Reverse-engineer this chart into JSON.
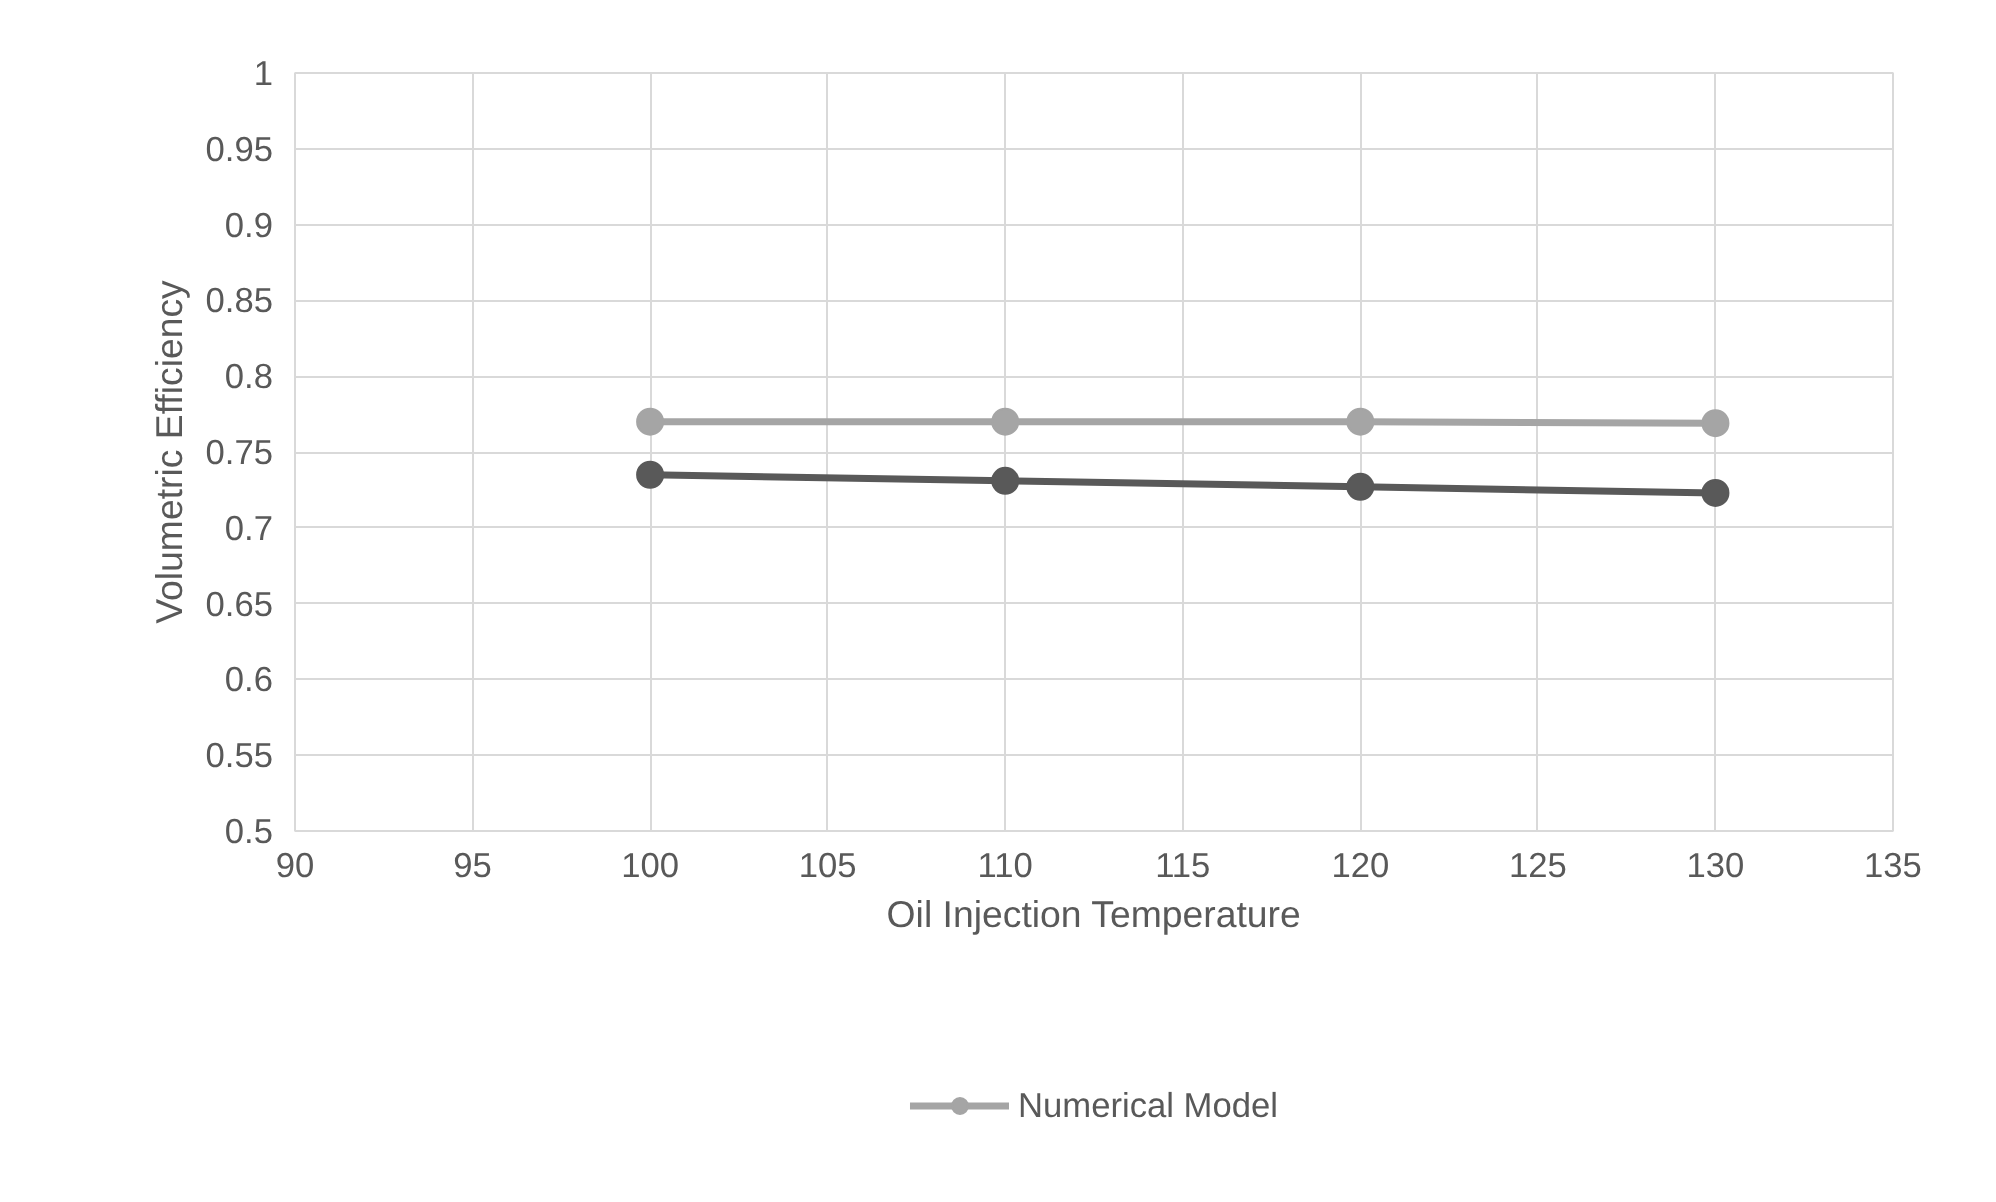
{
  "chart_data": {
    "type": "line",
    "xlabel": "Oil Injection Temperature",
    "ylabel": "Volumetric Efficiency",
    "x": [
      100,
      110,
      120,
      130
    ],
    "series": [
      {
        "color": "#595959",
        "values": [
          0.735,
          0.731,
          0.727,
          0.723
        ]
      },
      {
        "name": "Numerical Model",
        "color": "#a5a5a5",
        "values": [
          0.77,
          0.77,
          0.77,
          0.769
        ]
      }
    ],
    "xlim": [
      90,
      135
    ],
    "xticks": [
      90,
      95,
      100,
      105,
      110,
      115,
      120,
      125,
      130,
      135
    ],
    "ylim": [
      0.5,
      1
    ],
    "yticks": [
      {
        "value": 0.5,
        "label": "0.5"
      },
      {
        "value": 0.55,
        "label": "0.55"
      },
      {
        "value": 0.6,
        "label": "0.6"
      },
      {
        "value": 0.65,
        "label": "0.65"
      },
      {
        "value": 0.7,
        "label": "0.7"
      },
      {
        "value": 0.75,
        "label": "0.75"
      },
      {
        "value": 0.8,
        "label": "0.8"
      },
      {
        "value": 0.85,
        "label": "0.85"
      },
      {
        "value": 0.9,
        "label": "0.9"
      },
      {
        "value": 0.95,
        "label": "0.95"
      },
      {
        "value": 1,
        "label": "1"
      }
    ],
    "grid": true,
    "legend": "bottom",
    "marker": "circle",
    "line_style": "solid"
  }
}
